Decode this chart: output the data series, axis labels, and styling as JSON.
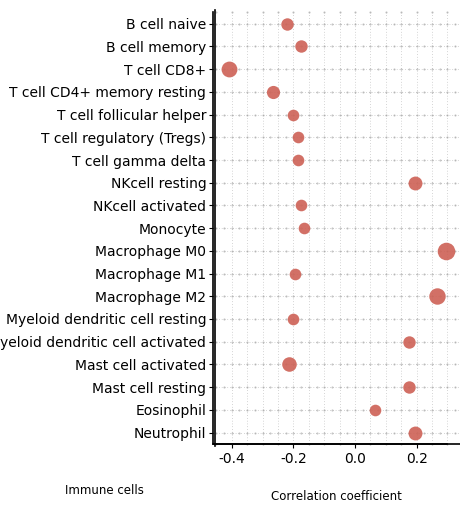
{
  "cells": [
    "B cell naive",
    "B cell memory",
    "T cell CD8+",
    "T cell CD4+ memory resting",
    "T cell follicular helper",
    "T cell regulatory (Tregs)",
    "T cell gamma delta",
    "NKcell resting",
    "NKcell activated",
    "Monocyte",
    "Macrophage M0",
    "Macrophage M1",
    "Macrophage M2",
    "Myeloid dendritic cell resting",
    "Myeloid dendritic cell activated",
    "Mast cell activated",
    "Mast cell resting",
    "Eosinophil",
    "Neutrophil"
  ],
  "values": [
    -0.22,
    -0.175,
    -0.41,
    -0.265,
    -0.2,
    -0.185,
    -0.185,
    0.195,
    -0.175,
    -0.165,
    0.295,
    -0.195,
    0.265,
    -0.2,
    0.175,
    -0.215,
    0.175,
    0.065,
    0.195
  ],
  "dot_sizes": [
    80,
    80,
    130,
    90,
    70,
    70,
    70,
    100,
    70,
    70,
    160,
    70,
    140,
    70,
    80,
    110,
    80,
    70,
    100
  ],
  "dot_color": "#cd6155",
  "background_color": "#ffffff",
  "xlabel": "Correlation coefficient",
  "ylabel": "Immune cells",
  "xlim": [
    -0.46,
    0.34
  ],
  "ylim": [
    -0.6,
    18.6
  ],
  "xticks": [
    -0.4,
    -0.2,
    0.0,
    0.2
  ],
  "xticklabels": [
    "-0.4",
    "-0.2",
    "0.0",
    "0.2"
  ],
  "grid_color": "#999999",
  "label_fontsize": 8.5,
  "tick_fontsize": 8.5,
  "ylabel_fontsize": 8.5,
  "xlabel_fontsize": 8.5
}
